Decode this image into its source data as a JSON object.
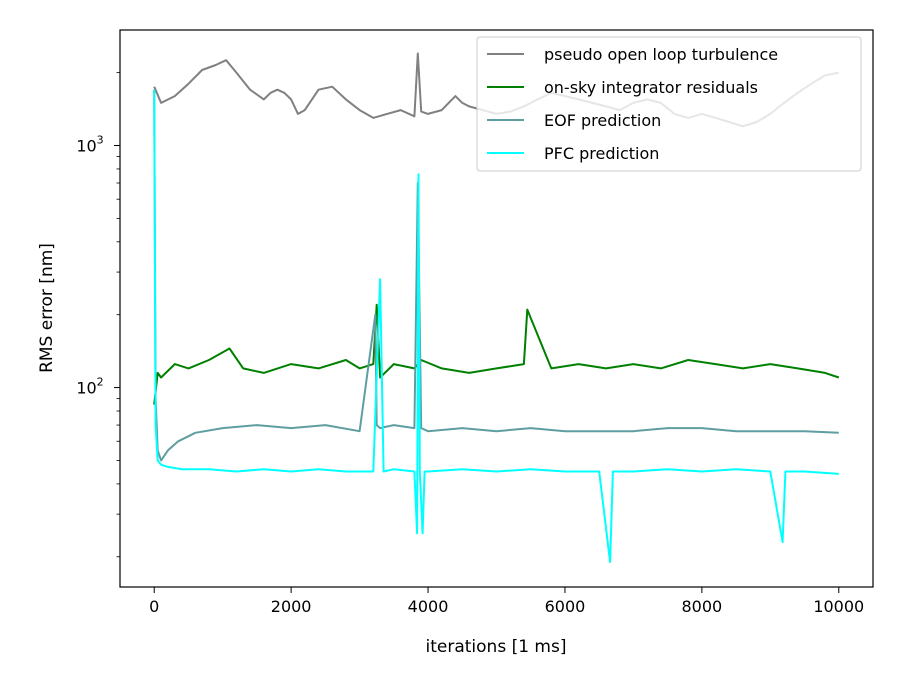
{
  "chart_data": {
    "type": "line",
    "title": "",
    "xlabel": "iterations [1 ms]",
    "ylabel": "RMS error [nm]",
    "xlim": [
      -500,
      10500
    ],
    "ylim": [
      15,
      3000
    ],
    "yscale": "log",
    "grid": false,
    "legend_position": "top-right",
    "x_ticks": [
      {
        "value": 0,
        "label": "0"
      },
      {
        "value": 2000,
        "label": "2000"
      },
      {
        "value": 4000,
        "label": "4000"
      },
      {
        "value": 6000,
        "label": "6000"
      },
      {
        "value": 8000,
        "label": "8000"
      },
      {
        "value": 10000,
        "label": "10000"
      }
    ],
    "y_ticks": [
      {
        "value": 100,
        "base": "10",
        "exp": "2"
      },
      {
        "value": 1000,
        "base": "10",
        "exp": "3"
      }
    ],
    "series": [
      {
        "name": "pseudo open loop turbulence",
        "color": "#808080",
        "x": [
          0,
          100,
          300,
          500,
          700,
          900,
          1050,
          1200,
          1400,
          1600,
          1700,
          1800,
          1900,
          2000,
          2100,
          2200,
          2400,
          2600,
          2800,
          3000,
          3200,
          3400,
          3600,
          3800,
          3850,
          3900,
          4000,
          4200,
          4400,
          4500,
          4600,
          4800,
          5000,
          5200,
          5400,
          5600,
          5800,
          6000,
          6200,
          6400,
          6600,
          6800,
          7000,
          7200,
          7400,
          7600,
          7800,
          8000,
          8200,
          8400,
          8600,
          8800,
          9000,
          9200,
          9400,
          9600,
          9800,
          10000
        ],
        "values": [
          1750,
          1500,
          1600,
          1800,
          2050,
          2150,
          2250,
          2000,
          1700,
          1550,
          1650,
          1700,
          1650,
          1550,
          1350,
          1400,
          1700,
          1750,
          1550,
          1400,
          1300,
          1350,
          1400,
          1320,
          2400,
          1380,
          1350,
          1400,
          1600,
          1500,
          1450,
          1400,
          1350,
          1380,
          1450,
          1550,
          1650,
          1600,
          1550,
          1500,
          1450,
          1400,
          1500,
          1550,
          1500,
          1350,
          1300,
          1350,
          1300,
          1250,
          1200,
          1250,
          1350,
          1500,
          1650,
          1800,
          1950,
          2000
        ]
      },
      {
        "name": "on-sky integrator residuals",
        "color": "#008000",
        "x": [
          0,
          50,
          100,
          300,
          500,
          800,
          1100,
          1300,
          1600,
          2000,
          2400,
          2800,
          3000,
          3200,
          3250,
          3300,
          3500,
          3800,
          3900,
          4200,
          4600,
          5000,
          5400,
          5450,
          5800,
          6200,
          6600,
          7000,
          7400,
          7800,
          8200,
          8600,
          9000,
          9400,
          9800,
          10000
        ],
        "values": [
          85,
          115,
          110,
          125,
          120,
          130,
          145,
          120,
          115,
          125,
          120,
          130,
          120,
          125,
          220,
          110,
          125,
          120,
          130,
          120,
          115,
          120,
          125,
          210,
          120,
          125,
          120,
          125,
          120,
          130,
          125,
          120,
          125,
          120,
          115,
          110
        ]
      },
      {
        "name": "EOF prediction",
        "color": "#5f9ea0",
        "x": [
          0,
          20,
          50,
          100,
          200,
          350,
          600,
          1000,
          1500,
          2000,
          2500,
          3000,
          3230,
          3250,
          3300,
          3500,
          3800,
          3850,
          3900,
          4000,
          4500,
          5000,
          5500,
          6000,
          6500,
          7000,
          7500,
          8000,
          8500,
          9000,
          9500,
          10000
        ],
        "values": [
          1700,
          90,
          55,
          50,
          55,
          60,
          65,
          68,
          70,
          68,
          70,
          66,
          200,
          70,
          68,
          70,
          68,
          700,
          68,
          66,
          68,
          66,
          68,
          66,
          66,
          66,
          68,
          68,
          66,
          66,
          66,
          65
        ]
      },
      {
        "name": "PFC prediction",
        "color": "#00ffff",
        "x": [
          0,
          20,
          50,
          100,
          200,
          400,
          800,
          1200,
          1600,
          2000,
          2400,
          2800,
          3200,
          3300,
          3350,
          3500,
          3800,
          3840,
          3860,
          3880,
          3920,
          3950,
          4000,
          4500,
          5000,
          5500,
          6000,
          6500,
          6660,
          6700,
          7000,
          7500,
          8000,
          8500,
          9000,
          9180,
          9220,
          9500,
          10000
        ],
        "values": [
          1700,
          70,
          50,
          48,
          47,
          46,
          46,
          45,
          46,
          45,
          46,
          45,
          45,
          280,
          45,
          46,
          45,
          25,
          760,
          45,
          25,
          45,
          45,
          46,
          45,
          46,
          45,
          45,
          19,
          45,
          45,
          46,
          45,
          46,
          45,
          23,
          45,
          45,
          44
        ]
      }
    ]
  }
}
